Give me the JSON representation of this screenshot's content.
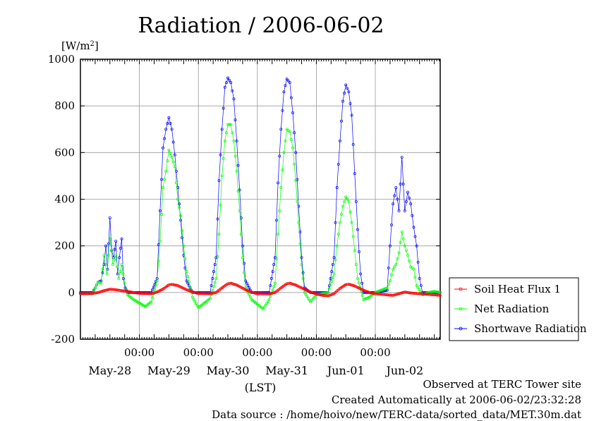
{
  "chart_data": {
    "type": "line",
    "title": "Radiation / 2006-06-02",
    "ylabel_unit": "[W/m",
    "ylabel_unit_sup": "2",
    "ylabel_unit_end": "]",
    "xlabel": "(LST)",
    "ylim": [
      -200,
      1000
    ],
    "xlim": [
      0,
      6.1
    ],
    "y_ticks": [
      -200,
      0,
      200,
      400,
      600,
      800,
      1000
    ],
    "x_ticks": [
      {
        "x": 1,
        "label": "00:00"
      },
      {
        "x": 2,
        "label": "00:00"
      },
      {
        "x": 3,
        "label": "00:00"
      },
      {
        "x": 4,
        "label": "00:00"
      },
      {
        "x": 5,
        "label": "00:00"
      }
    ],
    "day_labels": [
      {
        "x": 0.5,
        "label": "May-28"
      },
      {
        "x": 1.5,
        "label": "May-29"
      },
      {
        "x": 2.5,
        "label": "May-30"
      },
      {
        "x": 3.5,
        "label": "May-31"
      },
      {
        "x": 4.5,
        "label": "Jun-01"
      },
      {
        "x": 5.5,
        "label": "Jun-02"
      }
    ],
    "grid": true,
    "legend_position": "right",
    "series": [
      {
        "name": "Soil Heat Flux 1",
        "color": "#ff0000",
        "points": [
          [
            0.0,
            -5
          ],
          [
            0.2,
            -4
          ],
          [
            0.3,
            0
          ],
          [
            0.4,
            8
          ],
          [
            0.5,
            14
          ],
          [
            0.6,
            12
          ],
          [
            0.7,
            8
          ],
          [
            0.8,
            5
          ],
          [
            0.9,
            0
          ],
          [
            1.0,
            -3
          ],
          [
            1.2,
            -5
          ],
          [
            1.3,
            2
          ],
          [
            1.4,
            15
          ],
          [
            1.5,
            33
          ],
          [
            1.55,
            35
          ],
          [
            1.65,
            30
          ],
          [
            1.8,
            12
          ],
          [
            1.9,
            3
          ],
          [
            2.0,
            -4
          ],
          [
            2.2,
            -5
          ],
          [
            2.3,
            0
          ],
          [
            2.4,
            20
          ],
          [
            2.5,
            38
          ],
          [
            2.55,
            40
          ],
          [
            2.65,
            32
          ],
          [
            2.8,
            12
          ],
          [
            2.9,
            2
          ],
          [
            3.0,
            -5
          ],
          [
            3.2,
            -6
          ],
          [
            3.3,
            0
          ],
          [
            3.4,
            20
          ],
          [
            3.5,
            38
          ],
          [
            3.55,
            40
          ],
          [
            3.65,
            32
          ],
          [
            3.8,
            14
          ],
          [
            3.9,
            2
          ],
          [
            4.0,
            -6
          ],
          [
            4.1,
            -12
          ],
          [
            4.2,
            -14
          ],
          [
            4.3,
            -5
          ],
          [
            4.4,
            18
          ],
          [
            4.5,
            34
          ],
          [
            4.55,
            36
          ],
          [
            4.65,
            28
          ],
          [
            4.8,
            10
          ],
          [
            4.9,
            0
          ],
          [
            5.0,
            -5
          ],
          [
            5.2,
            -10
          ],
          [
            5.3,
            -12
          ],
          [
            5.4,
            -5
          ],
          [
            5.5,
            2
          ],
          [
            5.6,
            -2
          ],
          [
            5.8,
            -6
          ],
          [
            6.0,
            -10
          ],
          [
            6.1,
            -12
          ]
        ]
      },
      {
        "name": "Net Radiation",
        "color": "#00ff00",
        "points": [
          [
            0.0,
            -5
          ],
          [
            0.2,
            -5
          ],
          [
            0.25,
            20
          ],
          [
            0.3,
            45
          ],
          [
            0.35,
            40
          ],
          [
            0.4,
            160
          ],
          [
            0.45,
            80
          ],
          [
            0.5,
            240
          ],
          [
            0.55,
            120
          ],
          [
            0.6,
            160
          ],
          [
            0.65,
            60
          ],
          [
            0.7,
            120
          ],
          [
            0.75,
            40
          ],
          [
            0.8,
            -10
          ],
          [
            0.9,
            -30
          ],
          [
            1.0,
            -45
          ],
          [
            1.1,
            -60
          ],
          [
            1.2,
            -40
          ],
          [
            1.3,
            50
          ],
          [
            1.35,
            220
          ],
          [
            1.4,
            450
          ],
          [
            1.45,
            520
          ],
          [
            1.5,
            610
          ],
          [
            1.55,
            580
          ],
          [
            1.6,
            540
          ],
          [
            1.65,
            400
          ],
          [
            1.7,
            330
          ],
          [
            1.75,
            200
          ],
          [
            1.8,
            90
          ],
          [
            1.9,
            -20
          ],
          [
            2.0,
            -65
          ],
          [
            2.1,
            -45
          ],
          [
            2.2,
            -25
          ],
          [
            2.3,
            60
          ],
          [
            2.35,
            250
          ],
          [
            2.4,
            500
          ],
          [
            2.45,
            650
          ],
          [
            2.5,
            720
          ],
          [
            2.55,
            720
          ],
          [
            2.6,
            650
          ],
          [
            2.65,
            520
          ],
          [
            2.7,
            350
          ],
          [
            2.75,
            150
          ],
          [
            2.8,
            20
          ],
          [
            2.9,
            -30
          ],
          [
            3.0,
            -50
          ],
          [
            3.1,
            -70
          ],
          [
            3.2,
            -30
          ],
          [
            3.3,
            40
          ],
          [
            3.35,
            250
          ],
          [
            3.4,
            450
          ],
          [
            3.45,
            600
          ],
          [
            3.5,
            700
          ],
          [
            3.55,
            690
          ],
          [
            3.6,
            620
          ],
          [
            3.65,
            480
          ],
          [
            3.7,
            300
          ],
          [
            3.75,
            120
          ],
          [
            3.8,
            0
          ],
          [
            3.9,
            -40
          ],
          [
            4.0,
            -10
          ],
          [
            4.1,
            -5
          ],
          [
            4.2,
            0
          ],
          [
            4.3,
            80
          ],
          [
            4.35,
            200
          ],
          [
            4.4,
            300
          ],
          [
            4.45,
            370
          ],
          [
            4.5,
            410
          ],
          [
            4.55,
            390
          ],
          [
            4.6,
            300
          ],
          [
            4.65,
            180
          ],
          [
            4.7,
            60
          ],
          [
            4.8,
            -30
          ],
          [
            4.9,
            -20
          ],
          [
            5.0,
            0
          ],
          [
            5.1,
            10
          ],
          [
            5.2,
            20
          ],
          [
            5.25,
            50
          ],
          [
            5.3,
            100
          ],
          [
            5.35,
            120
          ],
          [
            5.4,
            170
          ],
          [
            5.45,
            260
          ],
          [
            5.5,
            200
          ],
          [
            5.55,
            160
          ],
          [
            5.6,
            110
          ],
          [
            5.65,
            100
          ],
          [
            5.7,
            30
          ],
          [
            5.8,
            -10
          ],
          [
            5.9,
            0
          ],
          [
            6.0,
            5
          ],
          [
            6.1,
            0
          ]
        ]
      },
      {
        "name": "Shortwave Radiation",
        "color": "#0000ff",
        "points": [
          [
            0.0,
            0
          ],
          [
            0.2,
            0
          ],
          [
            0.25,
            20
          ],
          [
            0.3,
            45
          ],
          [
            0.35,
            50
          ],
          [
            0.4,
            120
          ],
          [
            0.43,
            200
          ],
          [
            0.46,
            100
          ],
          [
            0.5,
            320
          ],
          [
            0.53,
            180
          ],
          [
            0.56,
            150
          ],
          [
            0.6,
            220
          ],
          [
            0.63,
            80
          ],
          [
            0.66,
            150
          ],
          [
            0.7,
            230
          ],
          [
            0.73,
            60
          ],
          [
            0.76,
            20
          ],
          [
            0.8,
            0
          ],
          [
            1.0,
            0
          ],
          [
            1.2,
            0
          ],
          [
            1.3,
            60
          ],
          [
            1.35,
            350
          ],
          [
            1.4,
            620
          ],
          [
            1.45,
            700
          ],
          [
            1.5,
            750
          ],
          [
            1.55,
            700
          ],
          [
            1.6,
            590
          ],
          [
            1.65,
            450
          ],
          [
            1.7,
            310
          ],
          [
            1.75,
            160
          ],
          [
            1.8,
            50
          ],
          [
            1.9,
            0
          ],
          [
            2.2,
            0
          ],
          [
            2.3,
            150
          ],
          [
            2.35,
            480
          ],
          [
            2.4,
            700
          ],
          [
            2.45,
            880
          ],
          [
            2.5,
            920
          ],
          [
            2.55,
            900
          ],
          [
            2.6,
            830
          ],
          [
            2.65,
            650
          ],
          [
            2.7,
            440
          ],
          [
            2.75,
            200
          ],
          [
            2.8,
            50
          ],
          [
            2.9,
            0
          ],
          [
            3.2,
            0
          ],
          [
            3.3,
            150
          ],
          [
            3.35,
            470
          ],
          [
            3.4,
            700
          ],
          [
            3.45,
            860
          ],
          [
            3.5,
            915
          ],
          [
            3.55,
            900
          ],
          [
            3.6,
            770
          ],
          [
            3.65,
            600
          ],
          [
            3.7,
            370
          ],
          [
            3.75,
            150
          ],
          [
            3.8,
            20
          ],
          [
            3.9,
            0
          ],
          [
            4.2,
            0
          ],
          [
            4.3,
            150
          ],
          [
            4.35,
            450
          ],
          [
            4.4,
            650
          ],
          [
            4.45,
            820
          ],
          [
            4.5,
            890
          ],
          [
            4.55,
            860
          ],
          [
            4.6,
            760
          ],
          [
            4.65,
            510
          ],
          [
            4.7,
            270
          ],
          [
            4.75,
            80
          ],
          [
            4.8,
            0
          ],
          [
            5.0,
            0
          ],
          [
            5.2,
            10
          ],
          [
            5.25,
            200
          ],
          [
            5.3,
            380
          ],
          [
            5.35,
            450
          ],
          [
            5.4,
            350
          ],
          [
            5.45,
            580
          ],
          [
            5.5,
            350
          ],
          [
            5.55,
            430
          ],
          [
            5.6,
            380
          ],
          [
            5.65,
            280
          ],
          [
            5.7,
            200
          ],
          [
            5.75,
            60
          ],
          [
            5.8,
            0
          ],
          [
            6.1,
            0
          ]
        ]
      }
    ]
  },
  "footer": {
    "line1": "Observed at TERC Tower site",
    "line2": "Created Automatically at 2006-06-02/23:32:28",
    "line3": "Data source : /home/hoivo/new/TERC-data/sorted_data/MET.30m.dat"
  }
}
